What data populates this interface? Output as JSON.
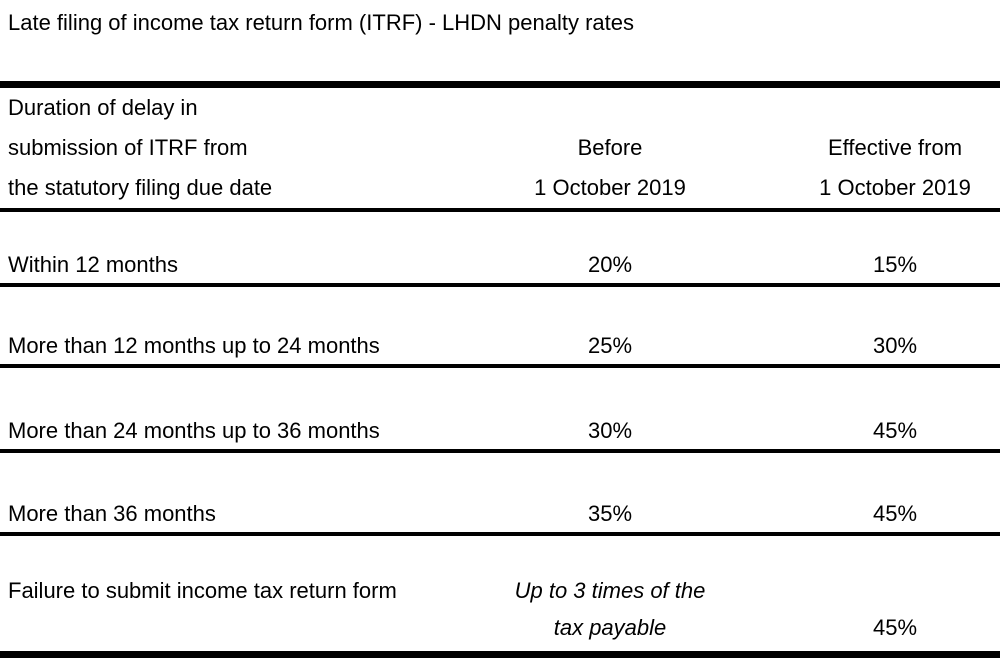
{
  "page": {
    "title": "Late filing of income tax return form (ITRF) - LHDN penalty rates",
    "colors": {
      "text": "#000000",
      "border": "#000000",
      "background": "#ffffff"
    }
  },
  "table": {
    "header": {
      "duration_lines": [
        "Duration of delay in",
        "submission of ITRF from",
        "the statutory filing due date"
      ],
      "before_lines": [
        "Before",
        "1 October 2019"
      ],
      "effective_lines": [
        "Effective from",
        "1 October 2019"
      ]
    },
    "rows": [
      {
        "duration": "Within 12 months",
        "before": "20%",
        "effective": "15%"
      },
      {
        "duration": "More than 12 months up to 24 months",
        "before": "25%",
        "effective": "30%"
      },
      {
        "duration": "More than 24 months up to 36 months",
        "before": "30%",
        "effective": "45%"
      },
      {
        "duration": "More than 36 months",
        "before": "35%",
        "effective": "45%"
      }
    ],
    "last_row": {
      "duration": "Failure to submit income tax return form",
      "before_lines": [
        "Up to 3 times of the",
        "tax payable"
      ],
      "effective": "45%"
    }
  }
}
